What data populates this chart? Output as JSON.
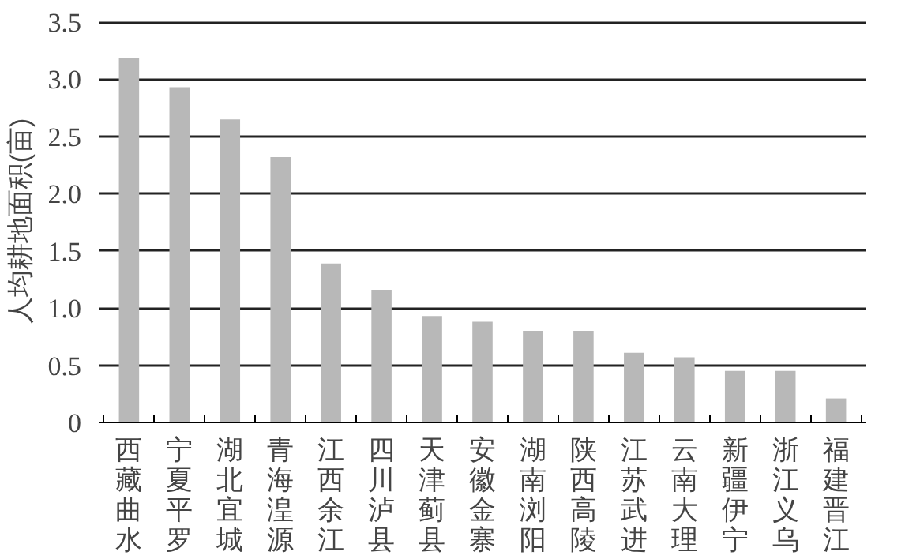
{
  "chart_data": {
    "type": "bar",
    "ylabel": "人均耕地面积(亩)",
    "categories": [
      "西藏曲水",
      "宁夏平罗",
      "湖北宜城",
      "青海湟源",
      "江西余江",
      "四川泸县",
      "天津蓟县",
      "安徽金寨",
      "湖南浏阳",
      "陕西高陵",
      "江苏武进",
      "云南大理",
      "新疆伊宁",
      "浙江义乌",
      "福建晋江"
    ],
    "values": [
      3.19,
      2.93,
      2.65,
      2.32,
      1.39,
      1.16,
      0.93,
      0.88,
      0.8,
      0.8,
      0.61,
      0.57,
      0.45,
      0.45,
      0.21
    ],
    "color": "#b8b8b8",
    "ylim": [
      0,
      3.5
    ],
    "yticks": [
      {
        "value": 0,
        "label": "0"
      },
      0.5,
      {
        "value": 1,
        "label": "1.0"
      },
      1.5,
      {
        "value": 2,
        "label": "2.0"
      },
      2.5,
      {
        "value": 3,
        "label": "3.0"
      },
      3.5
    ],
    "grid": "y"
  }
}
